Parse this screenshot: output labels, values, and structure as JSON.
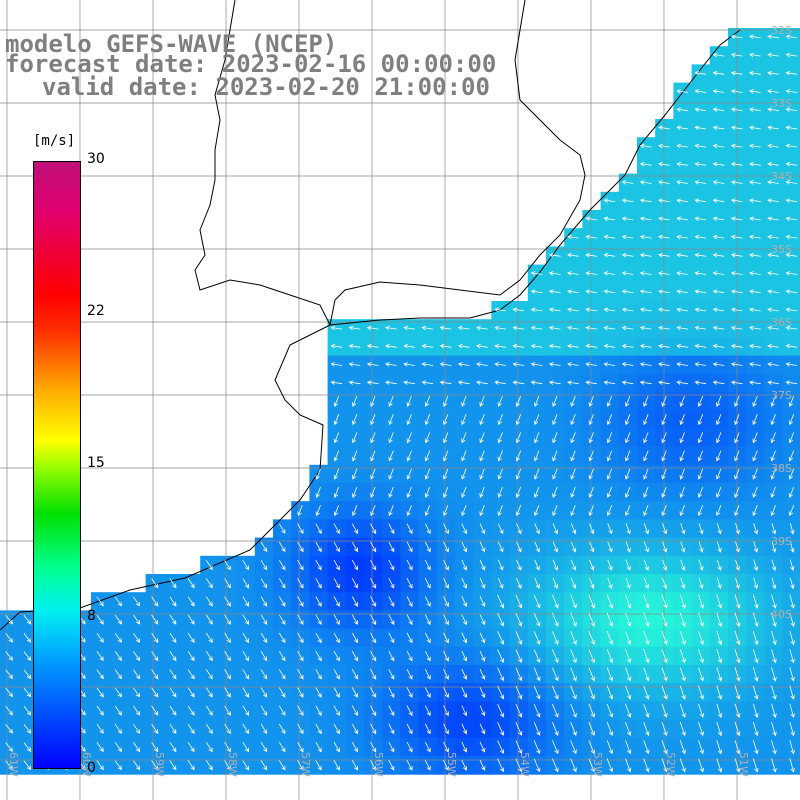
{
  "title": {
    "line1": "modelo GEFS-WAVE (NCEP)",
    "line2": "forecast date: 2023-02-16 00:00:00",
    "line3": "valid date: 2023-02-20 21:00:00"
  },
  "colorbar": {
    "unit": "[m/s]",
    "min": 0,
    "max": 30,
    "ticks": [
      "30",
      "22",
      "15",
      "8",
      "0"
    ]
  },
  "lat_labels": [
    "32S",
    "33S",
    "34S",
    "35S",
    "36S",
    "37S",
    "38S",
    "39S",
    "40S"
  ],
  "lon_labels": [
    "61W",
    "60W",
    "59W",
    "58W",
    "57W",
    "56W",
    "55W",
    "54W",
    "53W",
    "52W",
    "51W"
  ],
  "colors": {
    "land": "#ffffff",
    "grid": "#888888",
    "coast": "#000000",
    "arrow": "#ffffff",
    "title": "#7f7f7f"
  }
}
